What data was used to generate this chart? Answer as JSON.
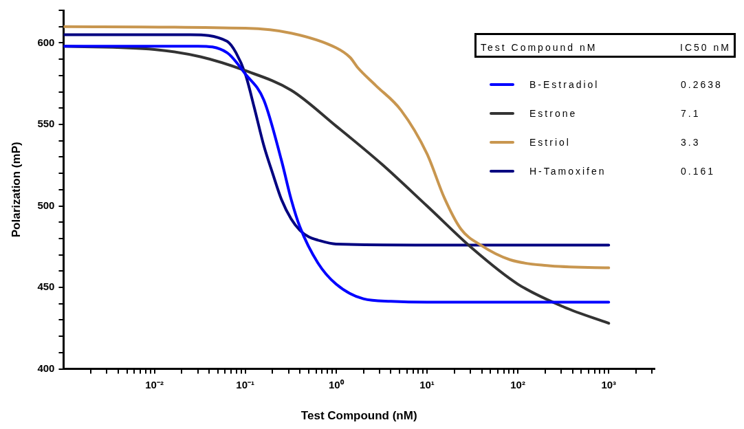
{
  "chart_data": {
    "type": "line",
    "xlabel": "Test Compound (nM)",
    "ylabel": "Polarization (mP)",
    "legend_title": "Test Compound nM",
    "annotations": [
      "IC50  nM",
      "0.2638",
      "7.1",
      "3.3",
      "0.161"
    ],
    "log": "x",
    "grid": false,
    "legend": "top right",
    "marker": "none",
    "line_style": "solid",
    "xlim": [
      0.001,
      3200
    ],
    "ylim": [
      400,
      620
    ],
    "xticks": [
      {
        "value": 0.002,
        "label": null
      },
      {
        "value": 0.003,
        "label": null
      },
      {
        "value": 0.004,
        "label": null
      },
      {
        "value": 0.005,
        "label": null
      },
      {
        "value": 0.006,
        "label": null
      },
      {
        "value": 0.007,
        "label": null
      },
      {
        "value": 0.008,
        "label": null
      },
      {
        "value": 0.009,
        "label": null
      },
      {
        "value": 0.01,
        "label": "10⁻²"
      },
      {
        "value": 0.02,
        "label": null
      },
      {
        "value": 0.03,
        "label": null
      },
      {
        "value": 0.04,
        "label": null
      },
      {
        "value": 0.05,
        "label": null
      },
      {
        "value": 0.06,
        "label": null
      },
      {
        "value": 0.07,
        "label": null
      },
      {
        "value": 0.08,
        "label": null
      },
      {
        "value": 0.09,
        "label": null
      },
      {
        "value": 0.1,
        "label": "10⁻¹"
      },
      {
        "value": 0.2,
        "label": null
      },
      {
        "value": 0.3,
        "label": null
      },
      {
        "value": 0.4,
        "label": null
      },
      {
        "value": 0.5,
        "label": null
      },
      {
        "value": 0.6,
        "label": null
      },
      {
        "value": 0.7,
        "label": null
      },
      {
        "value": 0.8,
        "label": null
      },
      {
        "value": 0.9,
        "label": null
      },
      {
        "value": 1,
        "label": "10⁰"
      },
      {
        "value": 2,
        "label": null
      },
      {
        "value": 3,
        "label": null
      },
      {
        "value": 4,
        "label": null
      },
      {
        "value": 5,
        "label": null
      },
      {
        "value": 6,
        "label": null
      },
      {
        "value": 7,
        "label": null
      },
      {
        "value": 8,
        "label": null
      },
      {
        "value": 9,
        "label": null
      },
      {
        "value": 10,
        "label": "10¹"
      },
      {
        "value": 20,
        "label": null
      },
      {
        "value": 30,
        "label": null
      },
      {
        "value": 40,
        "label": null
      },
      {
        "value": 50,
        "label": null
      },
      {
        "value": 60,
        "label": null
      },
      {
        "value": 70,
        "label": null
      },
      {
        "value": 80,
        "label": null
      },
      {
        "value": 90,
        "label": null
      },
      {
        "value": 100,
        "label": "10²"
      },
      {
        "value": 200,
        "label": null
      },
      {
        "value": 300,
        "label": null
      },
      {
        "value": 400,
        "label": null
      },
      {
        "value": 500,
        "label": null
      },
      {
        "value": 600,
        "label": null
      },
      {
        "value": 700,
        "label": null
      },
      {
        "value": 800,
        "label": null
      },
      {
        "value": 900,
        "label": null
      },
      {
        "value": 1000,
        "label": "10³"
      },
      {
        "value": 2000,
        "label": null
      },
      {
        "value": 3000,
        "label": null
      }
    ],
    "yticks": [
      400,
      {
        "value": 410,
        "label": null
      },
      {
        "value": 420,
        "label": null
      },
      {
        "value": 430,
        "label": null
      },
      {
        "value": 440,
        "label": null
      },
      450,
      {
        "value": 460,
        "label": null
      },
      {
        "value": 470,
        "label": null
      },
      {
        "value": 480,
        "label": null
      },
      {
        "value": 490,
        "label": null
      },
      500,
      {
        "value": 510,
        "label": null
      },
      {
        "value": 520,
        "label": null
      },
      {
        "value": 530,
        "label": null
      },
      {
        "value": 540,
        "label": null
      },
      550,
      {
        "value": 560,
        "label": null
      },
      {
        "value": 570,
        "label": null
      },
      {
        "value": 580,
        "label": null
      },
      {
        "value": 590,
        "label": null
      },
      600,
      {
        "value": 610,
        "label": null
      },
      {
        "value": 620,
        "label": null
      }
    ],
    "series": [
      {
        "name": "B-Estradiol",
        "color": "#0000ff",
        "x": [
          0.001,
          0.01,
          0.03,
          0.063,
          0.1,
          0.16,
          0.25,
          0.32,
          0.4,
          0.63,
          1,
          2,
          4,
          10,
          100,
          1000
        ],
        "values": [
          598,
          598,
          598,
          594,
          581,
          565,
          528,
          504,
          487,
          465,
          452,
          443,
          441.5,
          441,
          441,
          441
        ]
      },
      {
        "name": "Estrone",
        "color": "#333333",
        "x": [
          0.001,
          0.01,
          0.032,
          0.1,
          0.32,
          1,
          3.2,
          10,
          32,
          100,
          320,
          1000
        ],
        "values": [
          598,
          596,
          591.5,
          583,
          571,
          549,
          525.5,
          500,
          473.6,
          452,
          438,
          428
        ]
      },
      {
        "name": "Estriol",
        "color": "#c8964f",
        "x": [
          0.001,
          0.1,
          0.32,
          1,
          1.43,
          1.72,
          2.72,
          5.18,
          10,
          15.5,
          23.5,
          38.9,
          81.8,
          209,
          1000
        ],
        "values": [
          610,
          609,
          606,
          597,
          591,
          585,
          574,
          558.7,
          532,
          505,
          486,
          476,
          467,
          463.4,
          462
        ]
      },
      {
        "name": "H-Tamoxifen",
        "color": "#000080",
        "x": [
          0.001,
          0.025,
          0.063,
          0.079,
          0.1,
          0.126,
          0.16,
          0.2,
          0.25,
          0.32,
          0.4,
          0.5,
          0.63,
          1,
          10,
          1000
        ],
        "values": [
          605,
          605,
          601,
          594,
          581,
          560,
          537,
          520,
          504,
          492,
          485,
          481,
          479,
          476.6,
          476,
          476
        ]
      }
    ]
  }
}
